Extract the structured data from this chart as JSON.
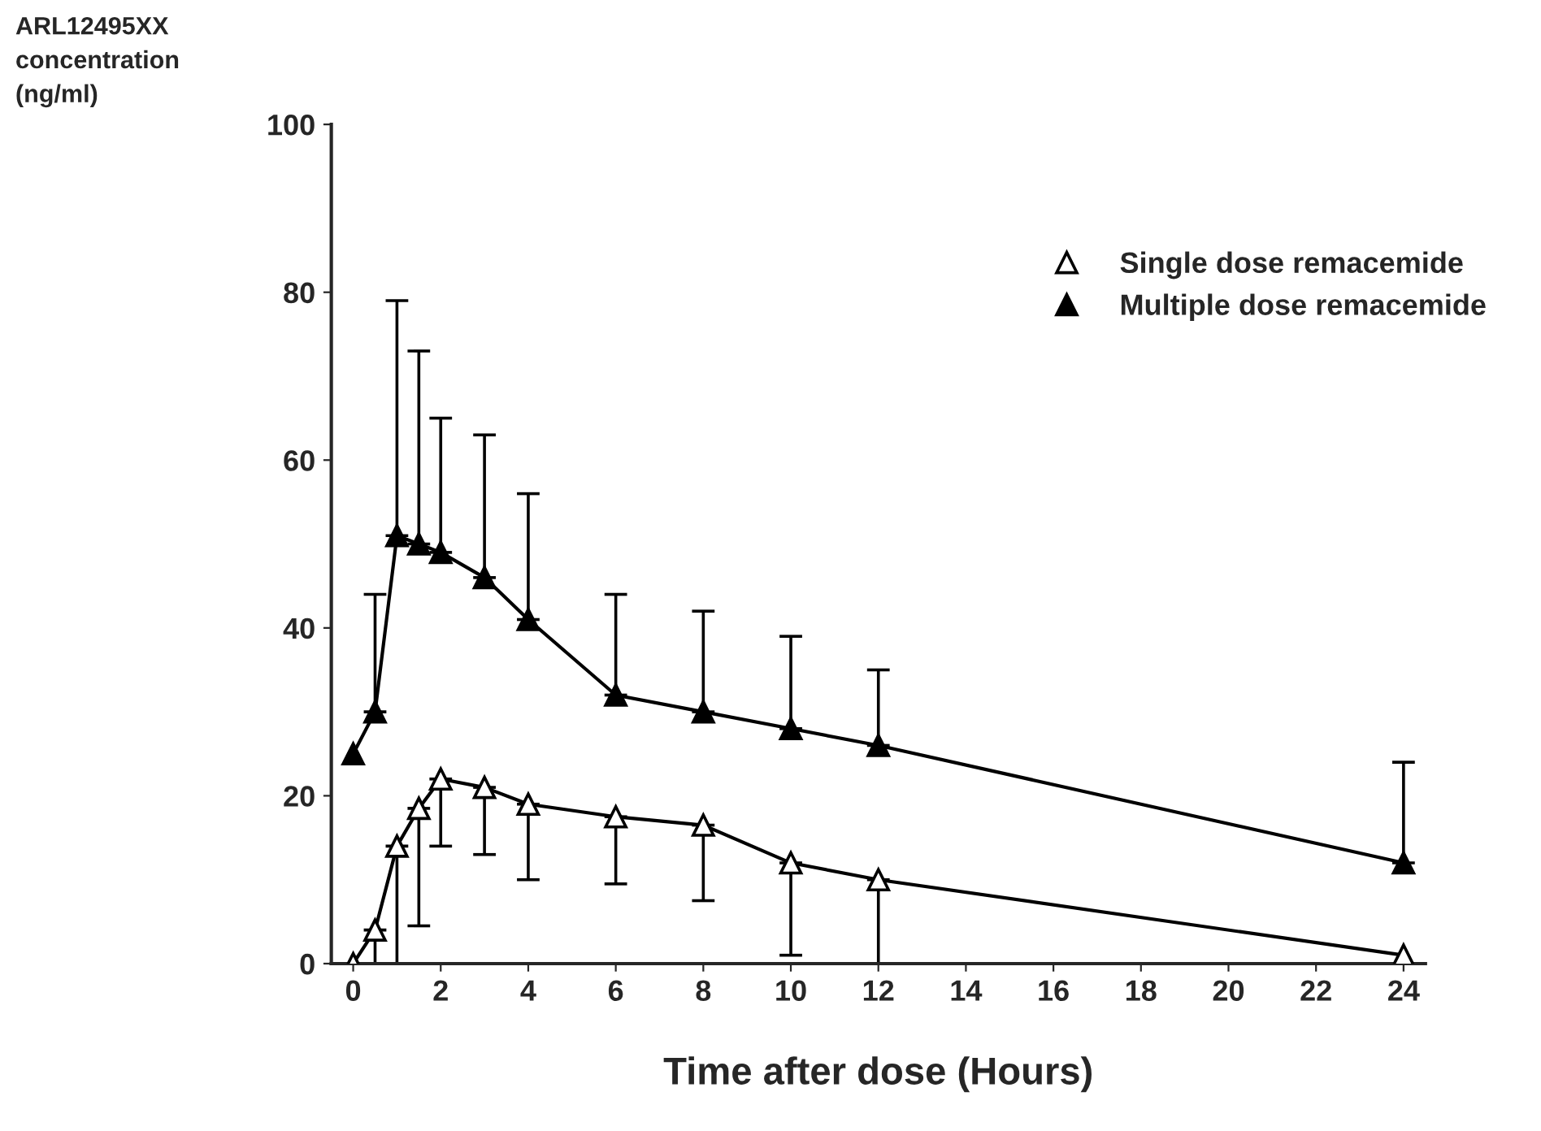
{
  "chart_data": {
    "type": "line",
    "xlabel": "Time after dose (Hours)",
    "ylabel": "ARL12495XX\nconcentration\n(ng/ml)",
    "x": [
      0,
      0.5,
      1,
      1.5,
      2,
      3,
      4,
      6,
      8,
      10,
      12,
      24
    ],
    "series": [
      {
        "name": "Single dose remacemide",
        "color": "#ffffff",
        "values": [
          0,
          4,
          14,
          18.5,
          22,
          21,
          19,
          17.5,
          16.5,
          12,
          10,
          1
        ],
        "errors": [
          null,
          [
            0,
            4
          ],
          [
            0,
            14
          ],
          [
            4.5,
            18.5
          ],
          [
            14,
            22
          ],
          [
            13,
            21
          ],
          [
            10,
            19
          ],
          [
            9.5,
            17.5
          ],
          [
            7.5,
            16.5
          ],
          [
            1,
            12
          ],
          [
            0,
            10
          ],
          null
        ]
      },
      {
        "name": "Multiple dose remacemide",
        "color": "#000000",
        "values": [
          25,
          30,
          51,
          50,
          49,
          46,
          41,
          32,
          30,
          28,
          26,
          12
        ],
        "errors": [
          null,
          [
            30,
            44
          ],
          [
            51,
            79
          ],
          [
            50,
            73
          ],
          [
            49,
            65
          ],
          [
            46,
            63
          ],
          [
            41,
            56
          ],
          [
            32,
            44
          ],
          [
            30,
            42
          ],
          [
            28,
            39
          ],
          [
            26,
            35
          ],
          [
            12,
            24
          ]
        ]
      }
    ],
    "xlim": [
      -0.5,
      24.5
    ],
    "xticks": [
      0,
      2,
      4,
      6,
      8,
      10,
      12,
      14,
      16,
      18,
      20,
      22,
      24
    ],
    "ylim": [
      0,
      100
    ],
    "yticks": [
      0,
      20,
      40,
      60,
      80,
      100
    ],
    "marker": "triangle",
    "line_style": "solid",
    "legend": "top right",
    "grid": false
  }
}
